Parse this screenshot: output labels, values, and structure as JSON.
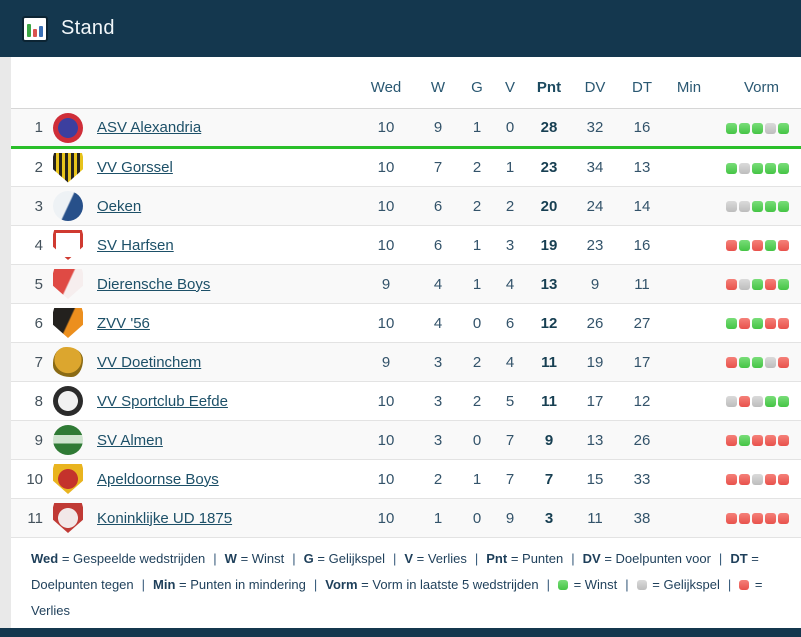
{
  "header": {
    "title": "Stand"
  },
  "table": {
    "columns": [
      "Wed",
      "W",
      "G",
      "V",
      "Pnt",
      "DV",
      "DT",
      "Min",
      "Vorm"
    ],
    "rows": [
      {
        "rank": "1",
        "team": "ASV Alexandria",
        "wed": "10",
        "w": "9",
        "g": "1",
        "v": "0",
        "pnt": "28",
        "dv": "32",
        "dt": "16",
        "min": "",
        "form": [
          "w",
          "w",
          "w",
          "d",
          "w"
        ],
        "promotion": true,
        "logo": {
          "shape": "circle",
          "style": "ring",
          "c1": "#cf2e39",
          "c2": "#3c3f9f"
        }
      },
      {
        "rank": "2",
        "team": "VV Gorssel",
        "wed": "10",
        "w": "7",
        "g": "2",
        "v": "1",
        "pnt": "23",
        "dv": "34",
        "dt": "13",
        "min": "",
        "form": [
          "w",
          "d",
          "w",
          "w",
          "w"
        ],
        "logo": {
          "shape": "shield",
          "style": "stripes",
          "c1": "#26221d",
          "c2": "#e7c31c"
        }
      },
      {
        "rank": "3",
        "team": "Oeken",
        "wed": "10",
        "w": "6",
        "g": "2",
        "v": "2",
        "pnt": "20",
        "dv": "24",
        "dt": "14",
        "min": "",
        "form": [
          "d",
          "d",
          "w",
          "w",
          "w"
        ],
        "logo": {
          "shape": "circle",
          "style": "split",
          "c1": "#eef2f5",
          "c2": "#27508a"
        }
      },
      {
        "rank": "4",
        "team": "SV Harfsen",
        "wed": "10",
        "w": "6",
        "g": "1",
        "v": "3",
        "pnt": "19",
        "dv": "23",
        "dt": "16",
        "min": "",
        "form": [
          "l",
          "w",
          "l",
          "w",
          "l"
        ],
        "logo": {
          "shape": "shield",
          "style": "outline",
          "c1": "#ffffff",
          "c2": "#cf3a31"
        }
      },
      {
        "rank": "5",
        "team": "Dierensche Boys",
        "wed": "9",
        "w": "4",
        "g": "1",
        "v": "4",
        "pnt": "13",
        "dv": "9",
        "dt": "11",
        "min": "",
        "form": [
          "l",
          "d",
          "w",
          "l",
          "w"
        ],
        "logo": {
          "shape": "shield",
          "style": "split",
          "c1": "#df4a44",
          "c2": "#f6eeee"
        }
      },
      {
        "rank": "6",
        "team": "ZVV '56",
        "wed": "10",
        "w": "4",
        "g": "0",
        "v": "6",
        "pnt": "12",
        "dv": "26",
        "dt": "27",
        "min": "",
        "form": [
          "w",
          "l",
          "w",
          "l",
          "l"
        ],
        "logo": {
          "shape": "shield",
          "style": "split",
          "c1": "#23211e",
          "c2": "#ec8f1e"
        }
      },
      {
        "rank": "7",
        "team": "VV Doetinchem",
        "wed": "9",
        "w": "3",
        "g": "2",
        "v": "4",
        "pnt": "11",
        "dv": "19",
        "dt": "17",
        "min": "",
        "form": [
          "l",
          "w",
          "w",
          "d",
          "l"
        ],
        "logo": {
          "shape": "lion",
          "style": "solid",
          "c1": "#dca62e",
          "c2": "#8a6a14"
        }
      },
      {
        "rank": "8",
        "team": "VV Sportclub Eefde",
        "wed": "10",
        "w": "3",
        "g": "2",
        "v": "5",
        "pnt": "11",
        "dv": "17",
        "dt": "12",
        "min": "",
        "form": [
          "d",
          "l",
          "d",
          "w",
          "w"
        ],
        "logo": {
          "shape": "circle",
          "style": "ring",
          "c1": "#2b2b2b",
          "c2": "#f1f1f1"
        }
      },
      {
        "rank": "9",
        "team": "SV Almen",
        "wed": "10",
        "w": "3",
        "g": "0",
        "v": "7",
        "pnt": "9",
        "dv": "13",
        "dt": "26",
        "min": "",
        "form": [
          "l",
          "w",
          "l",
          "l",
          "l"
        ],
        "logo": {
          "shape": "circle",
          "style": "band",
          "c1": "#2f7a35",
          "c2": "#cfe4cf"
        }
      },
      {
        "rank": "10",
        "team": "Apeldoornse Boys",
        "wed": "10",
        "w": "2",
        "g": "1",
        "v": "7",
        "pnt": "7",
        "dv": "15",
        "dt": "33",
        "min": "",
        "form": [
          "l",
          "l",
          "d",
          "l",
          "l"
        ],
        "logo": {
          "shape": "shield",
          "style": "ring",
          "c1": "#e9b41f",
          "c2": "#c4322c"
        }
      },
      {
        "rank": "11",
        "team": "Koninklijke UD 1875",
        "wed": "10",
        "w": "1",
        "g": "0",
        "v": "9",
        "pnt": "3",
        "dv": "11",
        "dt": "38",
        "min": "",
        "form": [
          "l",
          "l",
          "l",
          "l",
          "l"
        ],
        "logo": {
          "shape": "shield",
          "style": "ring",
          "c1": "#c03a35",
          "c2": "#f2e8e8"
        }
      }
    ]
  },
  "legend": {
    "separator": "|",
    "items": [
      {
        "key": "Wed",
        "value": "Gespeelde wedstrijden"
      },
      {
        "key": "W",
        "value": "Winst"
      },
      {
        "key": "G",
        "value": "Gelijkspel"
      },
      {
        "key": "V",
        "value": "Verlies"
      },
      {
        "key": "Pnt",
        "value": "Punten"
      },
      {
        "key": "DV",
        "value": "Doelpunten voor"
      },
      {
        "key": "DT",
        "value": "Doelpunten tegen"
      },
      {
        "key": "Min",
        "value": "Punten in mindering"
      },
      {
        "key": "Vorm",
        "value": "Vorm in laatste 5 wedstrijden"
      },
      {
        "dot": "w",
        "value": "Winst"
      },
      {
        "dot": "d",
        "value": "Gelijkspel"
      },
      {
        "dot": "l",
        "value": "Verlies"
      }
    ]
  },
  "colors": {
    "header_bg": "#14374e",
    "promotion_line": "#2abf2a",
    "form_win": "#5ace5a",
    "form_draw": "#c9c9c9",
    "form_loss": "#ef5f5f",
    "link": "#1d5068"
  }
}
